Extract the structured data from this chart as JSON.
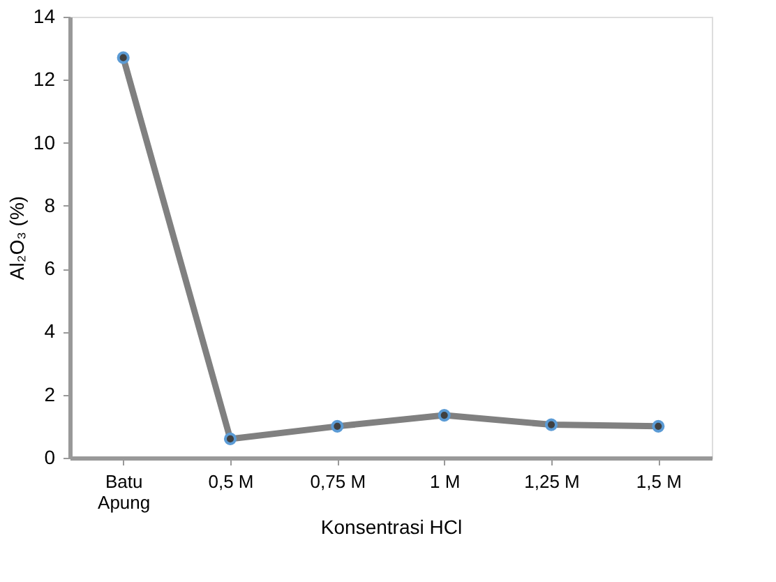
{
  "chart_data": {
    "type": "line",
    "xlabel": "Konsentrasi HCl",
    "ylabel": "Al₂O₃ (%)",
    "categories": [
      "Batu\nApung",
      "0,5 M",
      "0,75 M",
      "1 M",
      "1,25 M",
      "1,5 M"
    ],
    "series": [
      {
        "color": "#808080",
        "values": [
          12.7,
          0.6,
          1.0,
          1.35,
          1.05,
          1.0
        ]
      }
    ],
    "ylim": [
      0,
      14
    ],
    "yticks": [
      0,
      2,
      4,
      6,
      8,
      10,
      12,
      14
    ],
    "grid": false,
    "marker": "circle",
    "line_style": "solid"
  }
}
